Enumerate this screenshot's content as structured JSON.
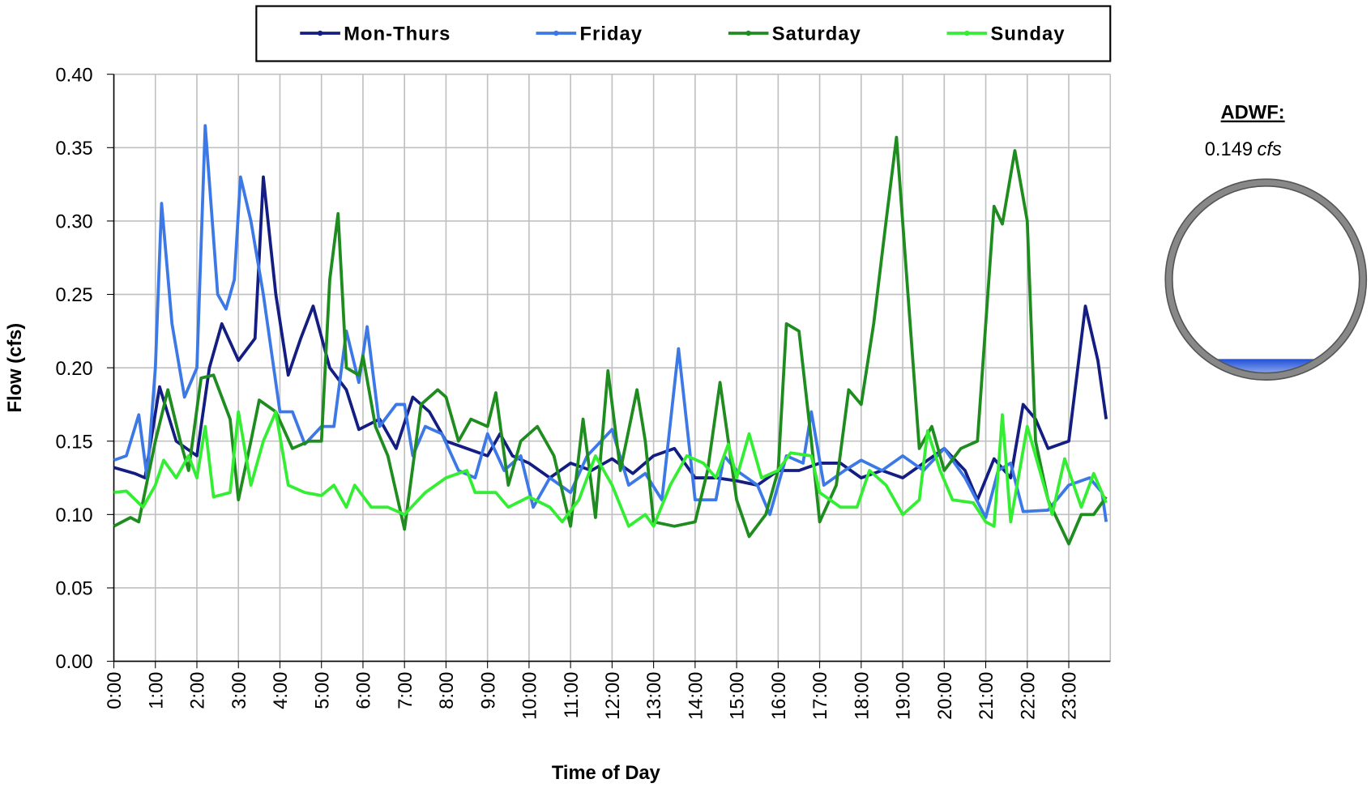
{
  "chart_data": {
    "type": "line",
    "y_label": "Flow (cfs)",
    "x_label": "Time of Day",
    "xlim": [
      0,
      24
    ],
    "ylim": [
      0,
      0.4
    ],
    "yticks": [
      {
        "value": 0,
        "label": "0.00"
      },
      {
        "value": 0.05,
        "label": "0.05"
      },
      {
        "value": 0.1,
        "label": "0.10"
      },
      {
        "value": 0.15,
        "label": "0.15"
      },
      {
        "value": 0.2,
        "label": "0.20"
      },
      {
        "value": 0.25,
        "label": "0.25"
      },
      {
        "value": 0.3,
        "label": "0.30"
      },
      {
        "value": 0.35,
        "label": "0.35"
      },
      {
        "value": 0.4,
        "label": "0.40"
      }
    ],
    "xticks": [
      {
        "value": 0,
        "label": "0:00"
      },
      {
        "value": 1,
        "label": "1:00"
      },
      {
        "value": 2,
        "label": "2:00"
      },
      {
        "value": 3,
        "label": "3:00"
      },
      {
        "value": 4,
        "label": "4:00"
      },
      {
        "value": 5,
        "label": "5:00"
      },
      {
        "value": 6,
        "label": "6:00"
      },
      {
        "value": 7,
        "label": "7:00"
      },
      {
        "value": 8,
        "label": "8:00"
      },
      {
        "value": 9,
        "label": "9:00"
      },
      {
        "value": 10,
        "label": "10:00"
      },
      {
        "value": 11,
        "label": "11:00"
      },
      {
        "value": 12,
        "label": "12:00"
      },
      {
        "value": 13,
        "label": "13:00"
      },
      {
        "value": 14,
        "label": "14:00"
      },
      {
        "value": 15,
        "label": "15:00"
      },
      {
        "value": 16,
        "label": "16:00"
      },
      {
        "value": 17,
        "label": "17:00"
      },
      {
        "value": 18,
        "label": "18:00"
      },
      {
        "value": 19,
        "label": "19:00"
      },
      {
        "value": 20,
        "label": "20:00"
      },
      {
        "value": 21,
        "label": "21:00"
      },
      {
        "value": 22,
        "label": "22:00"
      },
      {
        "value": 23,
        "label": "23:00"
      }
    ],
    "grid": true,
    "legend": "top",
    "series": [
      {
        "name": "Mon-Thurs",
        "color": "#141e82",
        "x": [
          0,
          0.5,
          0.75,
          1.1,
          1.5,
          2.0,
          2.3,
          2.6,
          3.0,
          3.4,
          3.6,
          3.9,
          4.2,
          4.5,
          4.8,
          5.2,
          5.6,
          5.9,
          6.4,
          6.8,
          7.2,
          7.6,
          8.0,
          8.5,
          9.0,
          9.3,
          9.6,
          10.0,
          10.5,
          11.0,
          11.5,
          12.0,
          12.5,
          13.0,
          13.5,
          14.0,
          14.5,
          15.0,
          15.5,
          16.0,
          16.5,
          17.0,
          17.5,
          18.0,
          18.5,
          19.0,
          19.5,
          20.0,
          20.5,
          20.8,
          21.2,
          21.6,
          21.9,
          22.2,
          22.5,
          23.0,
          23.4,
          23.7,
          23.9
        ],
        "values": [
          0.132,
          0.128,
          0.125,
          0.187,
          0.15,
          0.14,
          0.2,
          0.23,
          0.205,
          0.22,
          0.33,
          0.25,
          0.195,
          0.22,
          0.242,
          0.2,
          0.185,
          0.158,
          0.165,
          0.145,
          0.18,
          0.17,
          0.15,
          0.145,
          0.14,
          0.155,
          0.14,
          0.135,
          0.125,
          0.135,
          0.13,
          0.138,
          0.128,
          0.14,
          0.145,
          0.125,
          0.125,
          0.123,
          0.12,
          0.13,
          0.13,
          0.135,
          0.135,
          0.125,
          0.13,
          0.125,
          0.135,
          0.145,
          0.13,
          0.11,
          0.138,
          0.125,
          0.175,
          0.165,
          0.145,
          0.15,
          0.242,
          0.205,
          0.165
        ]
      },
      {
        "name": "Friday",
        "color": "#3c78e6",
        "x": [
          0,
          0.3,
          0.6,
          0.8,
          1.0,
          1.15,
          1.4,
          1.7,
          2.0,
          2.2,
          2.5,
          2.7,
          2.9,
          3.05,
          3.3,
          3.6,
          4.0,
          4.3,
          4.6,
          5.0,
          5.3,
          5.6,
          5.9,
          6.1,
          6.4,
          6.8,
          7.0,
          7.2,
          7.5,
          7.9,
          8.3,
          8.7,
          9.0,
          9.4,
          9.8,
          10.1,
          10.5,
          11.0,
          11.4,
          12.0,
          12.4,
          12.8,
          13.2,
          13.6,
          14.0,
          14.5,
          14.7,
          15.0,
          15.5,
          15.8,
          16.2,
          16.6,
          16.8,
          17.1,
          17.6,
          18.0,
          18.5,
          19.0,
          19.5,
          20.0,
          20.5,
          21.0,
          21.3,
          21.6,
          21.9,
          22.5,
          23.0,
          23.5,
          23.8,
          23.9
        ],
        "values": [
          0.137,
          0.14,
          0.168,
          0.125,
          0.2,
          0.312,
          0.23,
          0.18,
          0.2,
          0.365,
          0.25,
          0.24,
          0.26,
          0.33,
          0.3,
          0.25,
          0.17,
          0.17,
          0.148,
          0.16,
          0.16,
          0.225,
          0.19,
          0.228,
          0.16,
          0.175,
          0.175,
          0.14,
          0.16,
          0.155,
          0.13,
          0.125,
          0.155,
          0.13,
          0.14,
          0.105,
          0.125,
          0.115,
          0.14,
          0.158,
          0.12,
          0.128,
          0.11,
          0.213,
          0.11,
          0.11,
          0.14,
          0.13,
          0.12,
          0.1,
          0.14,
          0.135,
          0.17,
          0.12,
          0.13,
          0.137,
          0.13,
          0.14,
          0.13,
          0.145,
          0.125,
          0.098,
          0.13,
          0.135,
          0.102,
          0.103,
          0.12,
          0.125,
          0.115,
          0.095
        ]
      },
      {
        "name": "Saturday",
        "color": "#1e8c1e",
        "x": [
          0,
          0.4,
          0.6,
          1.0,
          1.3,
          1.6,
          1.8,
          2.1,
          2.4,
          2.8,
          3.0,
          3.3,
          3.5,
          3.9,
          4.3,
          4.7,
          5.0,
          5.2,
          5.4,
          5.6,
          5.9,
          6.0,
          6.3,
          6.6,
          7.0,
          7.4,
          7.8,
          8.0,
          8.3,
          8.6,
          9.0,
          9.2,
          9.5,
          9.8,
          10.2,
          10.6,
          11.0,
          11.3,
          11.6,
          11.9,
          12.2,
          12.6,
          12.8,
          13.0,
          13.5,
          14.0,
          14.3,
          14.6,
          15.0,
          15.3,
          15.7,
          16.0,
          16.2,
          16.5,
          16.8,
          17.0,
          17.4,
          17.7,
          18.0,
          18.3,
          18.6,
          18.85,
          19.1,
          19.4,
          19.7,
          20.0,
          20.4,
          20.8,
          21.2,
          21.4,
          21.7,
          22.0,
          22.2,
          22.5,
          23.0,
          23.3,
          23.6,
          23.9
        ],
        "values": [
          0.092,
          0.098,
          0.095,
          0.15,
          0.185,
          0.15,
          0.13,
          0.193,
          0.195,
          0.165,
          0.11,
          0.15,
          0.178,
          0.17,
          0.145,
          0.15,
          0.15,
          0.26,
          0.305,
          0.2,
          0.195,
          0.208,
          0.16,
          0.14,
          0.09,
          0.175,
          0.185,
          0.18,
          0.15,
          0.165,
          0.16,
          0.183,
          0.12,
          0.15,
          0.16,
          0.14,
          0.092,
          0.165,
          0.098,
          0.198,
          0.13,
          0.185,
          0.15,
          0.095,
          0.092,
          0.095,
          0.13,
          0.19,
          0.11,
          0.085,
          0.1,
          0.13,
          0.23,
          0.225,
          0.15,
          0.095,
          0.12,
          0.185,
          0.175,
          0.23,
          0.3,
          0.357,
          0.26,
          0.145,
          0.16,
          0.13,
          0.145,
          0.15,
          0.31,
          0.298,
          0.348,
          0.3,
          0.15,
          0.11,
          0.08,
          0.1,
          0.1,
          0.112
        ]
      },
      {
        "name": "Sunday",
        "color": "#33ee33",
        "x": [
          0,
          0.3,
          0.7,
          1.0,
          1.2,
          1.5,
          1.8,
          2.0,
          2.2,
          2.4,
          2.8,
          3.0,
          3.3,
          3.6,
          3.9,
          4.2,
          4.6,
          5.0,
          5.3,
          5.6,
          5.8,
          6.2,
          6.6,
          7.0,
          7.5,
          8.0,
          8.5,
          8.7,
          9.2,
          9.5,
          10.0,
          10.5,
          10.8,
          11.2,
          11.6,
          12.0,
          12.4,
          12.8,
          13.0,
          13.4,
          13.8,
          14.2,
          14.5,
          14.8,
          15.0,
          15.3,
          15.6,
          16.0,
          16.3,
          16.8,
          17.0,
          17.5,
          17.9,
          18.2,
          18.6,
          19.0,
          19.4,
          19.6,
          19.9,
          20.2,
          20.7,
          21.0,
          21.2,
          21.4,
          21.6,
          22.0,
          22.3,
          22.6,
          22.9,
          23.3,
          23.6,
          23.9
        ],
        "values": [
          0.115,
          0.116,
          0.105,
          0.12,
          0.137,
          0.125,
          0.14,
          0.125,
          0.16,
          0.112,
          0.115,
          0.17,
          0.12,
          0.15,
          0.17,
          0.12,
          0.115,
          0.113,
          0.12,
          0.105,
          0.12,
          0.105,
          0.105,
          0.1,
          0.115,
          0.125,
          0.13,
          0.115,
          0.115,
          0.105,
          0.112,
          0.105,
          0.095,
          0.11,
          0.14,
          0.12,
          0.092,
          0.1,
          0.092,
          0.12,
          0.14,
          0.135,
          0.125,
          0.148,
          0.125,
          0.155,
          0.125,
          0.13,
          0.142,
          0.14,
          0.115,
          0.105,
          0.105,
          0.13,
          0.12,
          0.1,
          0.11,
          0.157,
          0.13,
          0.11,
          0.108,
          0.095,
          0.092,
          0.168,
          0.095,
          0.16,
          0.13,
          0.1,
          0.138,
          0.105,
          0.128,
          0.108
        ]
      }
    ]
  },
  "adwf": {
    "label": "ADWF:",
    "value": 0.149,
    "unit": "cfs"
  }
}
